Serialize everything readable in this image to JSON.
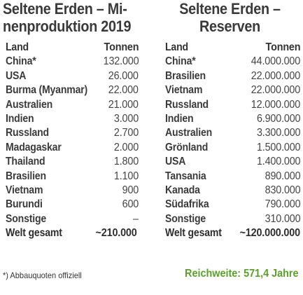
{
  "left": {
    "title_line1": "Seltene Erden – Mi-",
    "title_line2": "nenproduktion 2019",
    "header": {
      "land": "Land",
      "value": "Tonnen"
    },
    "rows": [
      {
        "land": "China*",
        "value": "132.000"
      },
      {
        "land": "USA",
        "value": "26.000"
      },
      {
        "land": "Burma (Myanmar)",
        "value": "22.000"
      },
      {
        "land": "Australien",
        "value": "21.000"
      },
      {
        "land": "Indien",
        "value": "3.000"
      },
      {
        "land": "Russland",
        "value": "2.700"
      },
      {
        "land": "Madagaskar",
        "value": "2.000"
      },
      {
        "land": "Thailand",
        "value": "1.800"
      },
      {
        "land": "Brasilien",
        "value": "1.100"
      },
      {
        "land": "Vietnam",
        "value": "900"
      },
      {
        "land": "Burundi",
        "value": "600"
      },
      {
        "land": "Sonstige",
        "value": "–"
      }
    ],
    "total": {
      "land": "Welt gesamt",
      "value": "~210.000"
    },
    "footnote": "*) Abbauquoten offiziell"
  },
  "right": {
    "title_line1": "Seltene Erden –",
    "title_line2": "Reserven",
    "header": {
      "land": "Land",
      "value": "Tonnen"
    },
    "rows": [
      {
        "land": "China*",
        "value": "44.000.000"
      },
      {
        "land": "Brasilien",
        "value": "22.000.000"
      },
      {
        "land": "Vietnam",
        "value": "22.000.000"
      },
      {
        "land": "Russland",
        "value": "12.000.000"
      },
      {
        "land": "Indien",
        "value": "6.900.000"
      },
      {
        "land": "Australien",
        "value": "3.300.000"
      },
      {
        "land": "Grönland",
        "value": "1.500.000"
      },
      {
        "land": "USA",
        "value": "1.400.000"
      },
      {
        "land": "Tansania",
        "value": "890.000"
      },
      {
        "land": "Kanada",
        "value": "830.000"
      },
      {
        "land": "Südafrika",
        "value": "790.000"
      },
      {
        "land": "Sonstige",
        "value": "310.000"
      }
    ],
    "total": {
      "land": "Welt gesamt",
      "value": "~120.000.000"
    },
    "reichweite": "Reichweite: 571,4 Jahre"
  },
  "colors": {
    "accent_green": "#5aa02c",
    "text": "#2a2a2a"
  }
}
